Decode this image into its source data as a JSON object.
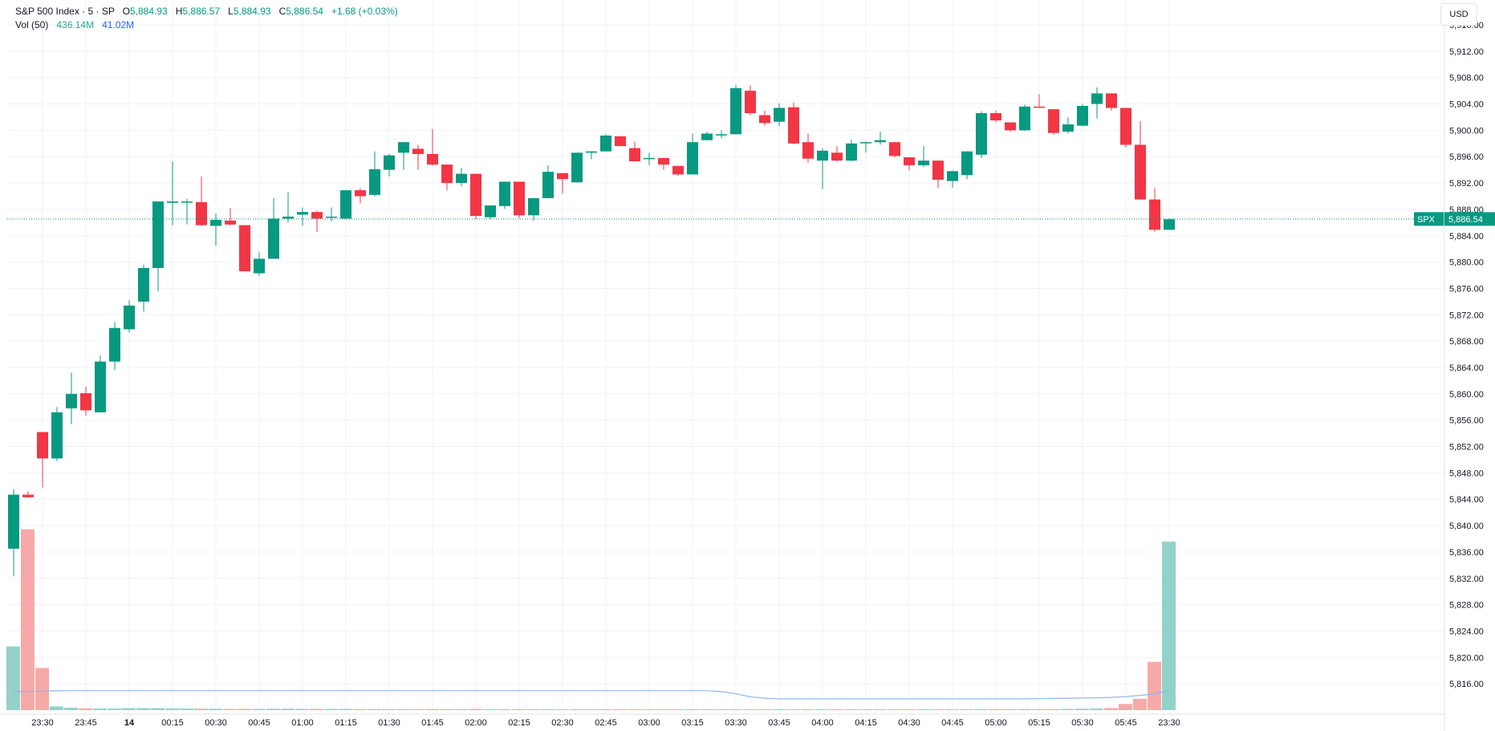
{
  "header": {
    "symbol": "S&P 500 Index · 5 · SP",
    "ohlc": [
      {
        "label": "O",
        "value": "5,884.93"
      },
      {
        "label": "H",
        "value": "5,886.57"
      },
      {
        "label": "L",
        "value": "5,884.93"
      },
      {
        "label": "C",
        "value": "5,886.54"
      }
    ],
    "change": "+1.68 (+0.03%)",
    "volume_label": "Vol (50)",
    "volume_value": "436.14M",
    "volume_ma": "41.02M"
  },
  "currency_button": "USD",
  "price_label": {
    "symbol": "SPX",
    "value": "5,886.54"
  },
  "colors": {
    "up": "#089981",
    "down": "#f23645",
    "vol_up": "#93d2cb",
    "vol_down": "#f7a9a9",
    "vol_ma": "#90b8f0"
  },
  "chart_data": {
    "type": "candlestick",
    "ylim": [
      5812,
      5918
    ],
    "y_ticks": [
      "5,916.00",
      "5,912.00",
      "5,908.00",
      "5,904.00",
      "5,900.00",
      "5,896.00",
      "5,892.00",
      "5,888.00",
      "5,884.00",
      "5,880.00",
      "5,876.00",
      "5,872.00",
      "5,868.00",
      "5,864.00",
      "5,860.00",
      "5,856.00",
      "5,852.00",
      "5,848.00",
      "5,844.00",
      "5,840.00",
      "5,836.00",
      "5,832.00",
      "5,828.00",
      "5,824.00",
      "5,820.00",
      "5,816.00"
    ],
    "x_ticks": [
      {
        "label": "23:30",
        "index": 2,
        "bold": false
      },
      {
        "label": "23:45",
        "index": 5,
        "bold": false
      },
      {
        "label": "14",
        "index": 8,
        "bold": true
      },
      {
        "label": "00:15",
        "index": 11,
        "bold": false
      },
      {
        "label": "00:30",
        "index": 14,
        "bold": false
      },
      {
        "label": "00:45",
        "index": 17,
        "bold": false
      },
      {
        "label": "01:00",
        "index": 20,
        "bold": false
      },
      {
        "label": "01:15",
        "index": 23,
        "bold": false
      },
      {
        "label": "01:30",
        "index": 26,
        "bold": false
      },
      {
        "label": "01:45",
        "index": 29,
        "bold": false
      },
      {
        "label": "02:00",
        "index": 32,
        "bold": false
      },
      {
        "label": "02:15",
        "index": 35,
        "bold": false
      },
      {
        "label": "02:30",
        "index": 38,
        "bold": false
      },
      {
        "label": "02:45",
        "index": 41,
        "bold": false
      },
      {
        "label": "03:00",
        "index": 44,
        "bold": false
      },
      {
        "label": "03:15",
        "index": 47,
        "bold": false
      },
      {
        "label": "03:30",
        "index": 50,
        "bold": false
      },
      {
        "label": "03:45",
        "index": 53,
        "bold": false
      },
      {
        "label": "04:00",
        "index": 56,
        "bold": false
      },
      {
        "label": "04:15",
        "index": 59,
        "bold": false
      },
      {
        "label": "04:30",
        "index": 62,
        "bold": false
      },
      {
        "label": "04:45",
        "index": 65,
        "bold": false
      },
      {
        "label": "05:00",
        "index": 68,
        "bold": false
      },
      {
        "label": "05:15",
        "index": 71,
        "bold": false
      },
      {
        "label": "05:30",
        "index": 74,
        "bold": false
      },
      {
        "label": "05:45",
        "index": 77,
        "bold": false
      },
      {
        "label": "23:30",
        "index": 80,
        "bold": false
      }
    ],
    "last_price": 5886.54,
    "candles": [
      [
        5836.5,
        5845.5,
        5832.3,
        5844.7
      ],
      [
        5844.7,
        5845.2,
        5844.2,
        5844.3
      ],
      [
        5854.2,
        5854.2,
        5845.8,
        5850.2
      ],
      [
        5850.2,
        5858.0,
        5849.8,
        5857.2
      ],
      [
        5857.8,
        5863.2,
        5855.4,
        5860.0
      ],
      [
        5860.1,
        5861.1,
        5856.7,
        5857.5
      ],
      [
        5857.2,
        5865.8,
        5857.2,
        5864.9
      ],
      [
        5864.9,
        5870.9,
        5863.6,
        5870.0
      ],
      [
        5869.8,
        5874.2,
        5869.3,
        5873.4
      ],
      [
        5874.0,
        5879.6,
        5872.5,
        5879.1
      ],
      [
        5879.1,
        5889.2,
        5875.6,
        5889.2
      ],
      [
        5889.0,
        5895.3,
        5885.6,
        5889.2
      ],
      [
        5889.1,
        5889.6,
        5885.7,
        5889.2
      ],
      [
        5889.1,
        5893.0,
        5885.5,
        5885.6
      ],
      [
        5885.5,
        5887.4,
        5882.5,
        5886.4
      ],
      [
        5886.3,
        5888.2,
        5885.6,
        5885.7
      ],
      [
        5885.6,
        5885.6,
        5878.6,
        5878.6
      ],
      [
        5878.3,
        5881.5,
        5877.9,
        5880.5
      ],
      [
        5880.5,
        5889.7,
        5880.5,
        5886.6
      ],
      [
        5886.6,
        5890.6,
        5886.0,
        5886.9
      ],
      [
        5887.2,
        5888.3,
        5885.5,
        5887.6
      ],
      [
        5887.6,
        5887.8,
        5884.6,
        5886.6
      ],
      [
        5886.9,
        5888.3,
        5886.2,
        5886.9
      ],
      [
        5886.6,
        5890.9,
        5886.5,
        5890.9
      ],
      [
        5890.9,
        5891.2,
        5888.9,
        5890.0
      ],
      [
        5890.2,
        5896.8,
        5890.0,
        5894.1
      ],
      [
        5894.0,
        5896.4,
        5893.0,
        5896.2
      ],
      [
        5896.6,
        5898.2,
        5894.0,
        5898.2
      ],
      [
        5897.2,
        5897.8,
        5894.0,
        5896.4
      ],
      [
        5896.4,
        5900.2,
        5894.6,
        5894.8
      ],
      [
        5894.8,
        5894.8,
        5890.9,
        5892.0
      ],
      [
        5892.0,
        5894.3,
        5891.5,
        5893.4
      ],
      [
        5893.4,
        5893.4,
        5886.5,
        5887.0
      ],
      [
        5886.8,
        5888.6,
        5886.5,
        5888.6
      ],
      [
        5888.5,
        5892.2,
        5888.1,
        5892.2
      ],
      [
        5892.2,
        5892.2,
        5886.6,
        5887.1
      ],
      [
        5887.1,
        5889.6,
        5886.3,
        5889.7
      ],
      [
        5889.7,
        5894.7,
        5889.7,
        5893.7
      ],
      [
        5893.5,
        5893.5,
        5890.4,
        5892.6
      ],
      [
        5892.1,
        5896.6,
        5892.1,
        5896.6
      ],
      [
        5896.6,
        5896.8,
        5895.6,
        5896.8
      ],
      [
        5896.8,
        5899.4,
        5896.8,
        5899.2
      ],
      [
        5899.1,
        5899.1,
        5897.6,
        5897.6
      ],
      [
        5897.3,
        5898.3,
        5895.3,
        5895.3
      ],
      [
        5895.8,
        5896.6,
        5894.7,
        5895.8
      ],
      [
        5895.8,
        5895.8,
        5894.0,
        5894.8
      ],
      [
        5894.6,
        5894.6,
        5893.1,
        5893.3
      ],
      [
        5893.3,
        5899.5,
        5893.3,
        5898.2
      ],
      [
        5898.5,
        5899.8,
        5898.5,
        5899.5
      ],
      [
        5899.4,
        5900.0,
        5898.8,
        5899.4
      ],
      [
        5899.4,
        5906.9,
        5899.4,
        5906.4
      ],
      [
        5906.0,
        5906.8,
        5902.3,
        5902.6
      ],
      [
        5902.3,
        5903.0,
        5900.7,
        5901.1
      ],
      [
        5901.3,
        5904.1,
        5900.6,
        5903.4
      ],
      [
        5903.5,
        5904.2,
        5897.9,
        5898.0
      ],
      [
        5898.2,
        5899.5,
        5895.1,
        5895.7
      ],
      [
        5895.4,
        5897.3,
        5891.1,
        5896.9
      ],
      [
        5896.6,
        5897.6,
        5895.3,
        5895.4
      ],
      [
        5895.4,
        5898.6,
        5895.3,
        5898.0
      ],
      [
        5898.2,
        5898.3,
        5896.6,
        5898.2
      ],
      [
        5898.2,
        5899.8,
        5897.8,
        5898.5
      ],
      [
        5898.2,
        5898.2,
        5895.9,
        5896.1
      ],
      [
        5895.9,
        5895.9,
        5893.9,
        5894.7
      ],
      [
        5894.7,
        5897.6,
        5894.4,
        5895.4
      ],
      [
        5895.4,
        5895.4,
        5891.2,
        5892.5
      ],
      [
        5892.3,
        5893.9,
        5891.3,
        5893.8
      ],
      [
        5893.2,
        5896.8,
        5892.6,
        5896.8
      ],
      [
        5896.3,
        5902.9,
        5895.8,
        5902.6
      ],
      [
        5902.6,
        5903.0,
        5901.2,
        5901.5
      ],
      [
        5901.2,
        5901.2,
        5899.8,
        5900.0
      ],
      [
        5900.0,
        5903.9,
        5899.9,
        5903.6
      ],
      [
        5903.6,
        5905.5,
        5903.4,
        5903.5
      ],
      [
        5903.2,
        5903.2,
        5899.3,
        5899.6
      ],
      [
        5899.8,
        5902.0,
        5899.5,
        5900.9
      ],
      [
        5900.7,
        5904.0,
        5900.6,
        5903.7
      ],
      [
        5904.0,
        5906.5,
        5901.8,
        5905.6
      ],
      [
        5905.6,
        5905.6,
        5903.0,
        5903.4
      ],
      [
        5903.4,
        5903.4,
        5897.4,
        5897.8
      ],
      [
        5897.8,
        5901.4,
        5889.5,
        5889.5
      ],
      [
        5889.5,
        5891.2,
        5884.6,
        5884.9
      ],
      [
        5884.9,
        5886.6,
        5884.9,
        5886.5
      ]
    ],
    "volume": [
      {
        "value": 3.1,
        "up": true
      },
      {
        "value": 8.8,
        "up": false
      },
      {
        "value": 2.05,
        "up": false
      },
      {
        "value": 0.18,
        "up": true
      },
      {
        "value": 0.12,
        "up": true
      },
      {
        "value": 0.09,
        "up": false
      },
      {
        "value": 0.08,
        "up": true
      },
      {
        "value": 0.08,
        "up": true
      },
      {
        "value": 0.1,
        "up": true
      },
      {
        "value": 0.1,
        "up": true
      },
      {
        "value": 0.1,
        "up": true
      },
      {
        "value": 0.08,
        "up": true
      },
      {
        "value": 0.08,
        "up": true
      },
      {
        "value": 0.07,
        "up": false
      },
      {
        "value": 0.07,
        "up": true
      },
      {
        "value": 0.06,
        "up": false
      },
      {
        "value": 0.06,
        "up": false
      },
      {
        "value": 0.06,
        "up": true
      },
      {
        "value": 0.07,
        "up": true
      },
      {
        "value": 0.07,
        "up": true
      },
      {
        "value": 0.06,
        "up": true
      },
      {
        "value": 0.06,
        "up": false
      },
      {
        "value": 0.06,
        "up": true
      },
      {
        "value": 0.06,
        "up": true
      },
      {
        "value": 0.05,
        "up": false
      },
      {
        "value": 0.05,
        "up": true
      },
      {
        "value": 0.05,
        "up": true
      },
      {
        "value": 0.05,
        "up": true
      },
      {
        "value": 0.05,
        "up": false
      },
      {
        "value": 0.05,
        "up": false
      },
      {
        "value": 0.05,
        "up": false
      },
      {
        "value": 0.05,
        "up": true
      },
      {
        "value": 0.06,
        "up": false
      },
      {
        "value": 0.04,
        "up": true
      },
      {
        "value": 0.04,
        "up": true
      },
      {
        "value": 0.05,
        "up": false
      },
      {
        "value": 0.04,
        "up": true
      },
      {
        "value": 0.04,
        "up": true
      },
      {
        "value": 0.04,
        "up": false
      },
      {
        "value": 0.04,
        "up": true
      },
      {
        "value": 0.04,
        "up": true
      },
      {
        "value": 0.04,
        "up": true
      },
      {
        "value": 0.04,
        "up": false
      },
      {
        "value": 0.04,
        "up": false
      },
      {
        "value": 0.04,
        "up": false
      },
      {
        "value": 0.04,
        "up": false
      },
      {
        "value": 0.04,
        "up": false
      },
      {
        "value": 0.04,
        "up": true
      },
      {
        "value": 0.04,
        "up": true
      },
      {
        "value": 0.04,
        "up": true
      },
      {
        "value": 0.04,
        "up": true
      },
      {
        "value": 0.04,
        "up": false
      },
      {
        "value": 0.04,
        "up": false
      },
      {
        "value": 0.04,
        "up": true
      },
      {
        "value": 0.04,
        "up": false
      },
      {
        "value": 0.04,
        "up": false
      },
      {
        "value": 0.04,
        "up": true
      },
      {
        "value": 0.04,
        "up": false
      },
      {
        "value": 0.04,
        "up": true
      },
      {
        "value": 0.04,
        "up": true
      },
      {
        "value": 0.04,
        "up": true
      },
      {
        "value": 0.04,
        "up": false
      },
      {
        "value": 0.04,
        "up": false
      },
      {
        "value": 0.04,
        "up": true
      },
      {
        "value": 0.04,
        "up": false
      },
      {
        "value": 0.04,
        "up": true
      },
      {
        "value": 0.04,
        "up": true
      },
      {
        "value": 0.05,
        "up": true
      },
      {
        "value": 0.05,
        "up": false
      },
      {
        "value": 0.05,
        "up": false
      },
      {
        "value": 0.05,
        "up": true
      },
      {
        "value": 0.05,
        "up": false
      },
      {
        "value": 0.05,
        "up": false
      },
      {
        "value": 0.06,
        "up": true
      },
      {
        "value": 0.07,
        "up": true
      },
      {
        "value": 0.08,
        "up": true
      },
      {
        "value": 0.1,
        "up": false
      },
      {
        "value": 0.3,
        "up": false
      },
      {
        "value": 0.55,
        "up": false
      },
      {
        "value": 2.35,
        "up": false
      },
      {
        "value": 8.2,
        "up": true
      }
    ],
    "volume_max": 9.8,
    "volume_ma": [
      0.9,
      0.9,
      0.92,
      0.94,
      0.95,
      0.95,
      0.95,
      0.95,
      0.95,
      0.95,
      0.95,
      0.95,
      0.95,
      0.95,
      0.95,
      0.95,
      0.95,
      0.95,
      0.95,
      0.95,
      0.95,
      0.95,
      0.95,
      0.95,
      0.95,
      0.95,
      0.95,
      0.95,
      0.95,
      0.95,
      0.95,
      0.95,
      0.95,
      0.95,
      0.95,
      0.95,
      0.95,
      0.95,
      0.95,
      0.95,
      0.95,
      0.95,
      0.95,
      0.95,
      0.95,
      0.95,
      0.95,
      0.95,
      0.95,
      0.9,
      0.8,
      0.65,
      0.58,
      0.55,
      0.55,
      0.55,
      0.55,
      0.55,
      0.55,
      0.55,
      0.55,
      0.55,
      0.55,
      0.55,
      0.55,
      0.55,
      0.55,
      0.55,
      0.55,
      0.55,
      0.55,
      0.56,
      0.57,
      0.58,
      0.59,
      0.6,
      0.62,
      0.66,
      0.72,
      0.8,
      0.95
    ]
  }
}
